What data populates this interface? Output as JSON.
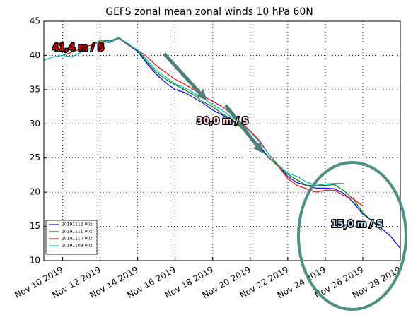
{
  "chart_data": {
    "type": "line",
    "title": "GEFS zonal mean zonal winds 10 hPa 60N",
    "x": [
      9,
      9.5,
      10,
      10.5,
      11,
      11.5,
      12,
      12.5,
      13,
      13.5,
      14,
      14.5,
      15,
      15.5,
      16,
      16.5,
      17,
      17.5,
      18,
      18.5,
      19,
      19.5,
      20,
      20.5,
      21,
      21.5,
      22,
      22.5,
      23,
      23.5,
      24,
      24.5,
      25,
      25.5,
      26,
      26.5,
      27,
      27.5,
      28
    ],
    "series": [
      {
        "name": "20191112 00z",
        "color": "#0000ff",
        "values": [
          null,
          null,
          null,
          null,
          null,
          null,
          42,
          41.9,
          42.5,
          41.5,
          40.6,
          38.8,
          37.2,
          36,
          35,
          34.6,
          33.8,
          33,
          32,
          31.3,
          30.5,
          29.5,
          28.2,
          26.8,
          25,
          23.8,
          22.3,
          21.4,
          21,
          20.6,
          20.6,
          20.5,
          19.8,
          18.5,
          16.8,
          15.8,
          14.7,
          13.5,
          11.8
        ]
      },
      {
        "name": "20191111 00z",
        "color": "#008000",
        "values": [
          null,
          null,
          null,
          null,
          40.5,
          41,
          42.3,
          42.1,
          42.6,
          41.7,
          40.7,
          39,
          37.5,
          36.5,
          35.7,
          35,
          34.2,
          33.2,
          32.5,
          31.5,
          30.7,
          29.5,
          28,
          26.5,
          25,
          23.8,
          22.6,
          21.8,
          21,
          21,
          21,
          21.1,
          20.2,
          19,
          17,
          15.8,
          14.3,
          null,
          null
        ]
      },
      {
        "name": "20191110 00z",
        "color": "#ff0000",
        "values": [
          null,
          null,
          40,
          40.5,
          41,
          41.5,
          42,
          42,
          42.5,
          41.5,
          40.8,
          39.8,
          38.5,
          37.5,
          36.5,
          35.8,
          35,
          34,
          33.3,
          32.5,
          31.5,
          30.2,
          29,
          27.5,
          25.5,
          23.8,
          22,
          21,
          20.5,
          20,
          20.3,
          20.3,
          19.5,
          19,
          18,
          null,
          null,
          null,
          null
        ]
      },
      {
        "name": "20191109 00z",
        "color": "#00bfbf",
        "values": [
          39.3,
          39.8,
          40,
          39.8,
          40.5,
          41,
          42.2,
          42,
          42.6,
          41.6,
          40.8,
          39.3,
          37.8,
          36.8,
          35.8,
          35.3,
          34.5,
          33.8,
          32.8,
          32,
          31,
          30,
          28.8,
          27.3,
          25.5,
          24,
          22.8,
          22.3,
          21.5,
          21,
          21.2,
          21.3,
          21.3,
          null,
          null,
          null,
          null,
          null,
          null
        ]
      }
    ],
    "xlim": [
      9,
      28
    ],
    "xticks": [
      {
        "value": 10,
        "label": "Nov 10 2019"
      },
      {
        "value": 12,
        "label": "Nov 12 2019"
      },
      {
        "value": 14,
        "label": "Nov 14 2019"
      },
      {
        "value": 16,
        "label": "Nov 16 2019"
      },
      {
        "value": 18,
        "label": "Nov 18 2019"
      },
      {
        "value": 20,
        "label": "Nov 20 2019"
      },
      {
        "value": 22,
        "label": "Nov 22 2019"
      },
      {
        "value": 24,
        "label": "Nov 24 2019"
      },
      {
        "value": 26,
        "label": "Nov 26 2019"
      },
      {
        "value": 28,
        "label": "Nov 28 2019"
      }
    ],
    "ylim": [
      10,
      45
    ],
    "yticks": [
      10,
      15,
      20,
      25,
      30,
      35,
      40,
      45
    ],
    "grid": true,
    "legend": "lower left",
    "annotations": [
      "41,4 m / S",
      "30,0 m / S",
      "15,0 m / S"
    ]
  }
}
